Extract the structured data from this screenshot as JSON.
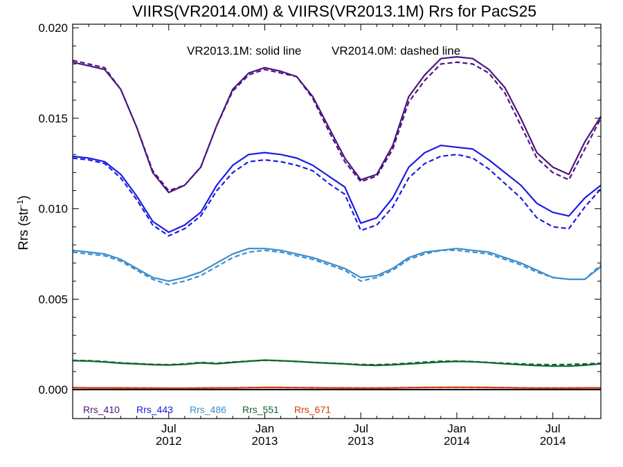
{
  "chart_data": {
    "type": "line",
    "title": "VIIRS(VR2014.0M) & VIIRS(VR2013.1M)  Rrs for PacS25",
    "annotation_solid": "VR2013.1M: solid line",
    "annotation_dashed": "VR2014.0M: dashed line",
    "ylabel": "Rrs (str",
    "ylabel_sup": "-1",
    "ylabel_close": ")",
    "xlim": [
      "2012-01",
      "2014-10"
    ],
    "ylim": [
      -0.0016,
      0.0202
    ],
    "y_ticks": [
      0.0,
      0.005,
      0.01,
      0.015,
      0.02
    ],
    "y_tick_labels": [
      "0.000",
      "0.005",
      "0.010",
      "0.015",
      "0.020"
    ],
    "x_ticks": [
      {
        "date": "2012-07",
        "month": "Jul",
        "year": "2012"
      },
      {
        "date": "2013-01",
        "month": "Jan",
        "year": "2013"
      },
      {
        "date": "2013-07",
        "month": "Jul",
        "year": "2013"
      },
      {
        "date": "2014-01",
        "month": "Jan",
        "year": "2014"
      },
      {
        "date": "2014-07",
        "month": "Jul",
        "year": "2014"
      }
    ],
    "x": [
      "2012-01",
      "2012-02",
      "2012-03",
      "2012-04",
      "2012-05",
      "2012-06",
      "2012-07",
      "2012-08",
      "2012-09",
      "2012-10",
      "2012-11",
      "2012-12",
      "2013-01",
      "2013-02",
      "2013-03",
      "2013-04",
      "2013-05",
      "2013-06",
      "2013-07",
      "2013-08",
      "2013-09",
      "2013-10",
      "2013-11",
      "2013-12",
      "2014-01",
      "2014-02",
      "2014-03",
      "2014-04",
      "2014-05",
      "2014-06",
      "2014-07",
      "2014-08",
      "2014-09",
      "2014-10"
    ],
    "series": [
      {
        "name": "Rrs_410",
        "color": "#4b1580",
        "solid": [
          0.0181,
          0.0179,
          0.0177,
          0.0166,
          0.0145,
          0.012,
          0.0109,
          0.0113,
          0.0123,
          0.0146,
          0.0166,
          0.0175,
          0.0178,
          0.0176,
          0.0173,
          0.0162,
          0.0145,
          0.0128,
          0.0116,
          0.0119,
          0.0135,
          0.0162,
          0.0174,
          0.0183,
          0.0184,
          0.0183,
          0.0177,
          0.0167,
          0.015,
          0.0131,
          0.0123,
          0.0119,
          0.0137,
          0.0151
        ],
        "dashed": [
          0.0182,
          0.018,
          0.0178,
          0.0166,
          0.0145,
          0.0121,
          0.011,
          0.0113,
          0.0123,
          0.0146,
          0.0165,
          0.0174,
          0.0177,
          0.0175,
          0.0173,
          0.0161,
          0.0143,
          0.0126,
          0.0115,
          0.0118,
          0.0133,
          0.0159,
          0.0171,
          0.018,
          0.0181,
          0.018,
          0.0175,
          0.0164,
          0.0146,
          0.0128,
          0.012,
          0.0116,
          0.0133,
          0.015
        ]
      },
      {
        "name": "Rrs_443",
        "color": "#1a1ae6",
        "solid": [
          0.0129,
          0.0128,
          0.0126,
          0.0119,
          0.0107,
          0.0093,
          0.0087,
          0.0091,
          0.0098,
          0.0113,
          0.0124,
          0.013,
          0.0131,
          0.013,
          0.0128,
          0.0124,
          0.0118,
          0.0112,
          0.0092,
          0.0095,
          0.0106,
          0.0123,
          0.0131,
          0.0135,
          0.0134,
          0.0133,
          0.0127,
          0.012,
          0.0113,
          0.0103,
          0.0098,
          0.0096,
          0.0106,
          0.0113
        ],
        "dashed": [
          0.0128,
          0.0127,
          0.0125,
          0.0117,
          0.0105,
          0.0091,
          0.0085,
          0.0089,
          0.0096,
          0.011,
          0.012,
          0.0126,
          0.0127,
          0.0126,
          0.0124,
          0.0121,
          0.0114,
          0.0108,
          0.0088,
          0.0091,
          0.0101,
          0.0117,
          0.0125,
          0.0129,
          0.013,
          0.0128,
          0.0122,
          0.0114,
          0.0106,
          0.0095,
          0.009,
          0.0089,
          0.0101,
          0.0111
        ]
      },
      {
        "name": "Rrs_486",
        "color": "#3b8ccb",
        "solid": [
          0.0077,
          0.0076,
          0.0075,
          0.0072,
          0.0067,
          0.0062,
          0.006,
          0.0062,
          0.0065,
          0.007,
          0.0075,
          0.0078,
          0.0078,
          0.0077,
          0.0075,
          0.0073,
          0.007,
          0.0067,
          0.0062,
          0.0063,
          0.0067,
          0.0073,
          0.0076,
          0.0077,
          0.0078,
          0.0077,
          0.0076,
          0.0073,
          0.007,
          0.0066,
          0.0062,
          0.0061,
          0.0061,
          0.0068
        ],
        "dashed": [
          0.0076,
          0.0075,
          0.0074,
          0.0071,
          0.0066,
          0.0061,
          0.0058,
          0.006,
          0.0063,
          0.0068,
          0.0073,
          0.0076,
          0.0077,
          0.0076,
          0.0074,
          0.0072,
          0.0069,
          0.0066,
          0.006,
          0.0062,
          0.0066,
          0.0072,
          0.0075,
          0.0077,
          0.0077,
          0.0076,
          0.0075,
          0.0072,
          0.0069,
          0.0065,
          0.0062,
          0.0061,
          0.0061,
          0.0069
        ]
      },
      {
        "name": "Rrs_551",
        "color": "#0d6630",
        "solid": [
          0.0016,
          0.00158,
          0.00153,
          0.00146,
          0.00142,
          0.00138,
          0.00136,
          0.0014,
          0.00148,
          0.00143,
          0.0015,
          0.00157,
          0.00163,
          0.0016,
          0.00156,
          0.0015,
          0.00146,
          0.00142,
          0.00136,
          0.00134,
          0.00137,
          0.00142,
          0.00147,
          0.00153,
          0.00156,
          0.00154,
          0.00149,
          0.00143,
          0.00138,
          0.00133,
          0.0013,
          0.0013,
          0.00135,
          0.00143
        ],
        "dashed": [
          0.00162,
          0.0016,
          0.00155,
          0.00148,
          0.00144,
          0.0014,
          0.00138,
          0.00142,
          0.0015,
          0.00146,
          0.00152,
          0.00158,
          0.00162,
          0.00159,
          0.00155,
          0.00151,
          0.00147,
          0.00143,
          0.00139,
          0.00138,
          0.00141,
          0.00146,
          0.00152,
          0.00157,
          0.00158,
          0.00155,
          0.0015,
          0.00146,
          0.00142,
          0.00139,
          0.00138,
          0.00139,
          0.00142,
          0.00146
        ]
      },
      {
        "name": "Rrs_671",
        "color": "#cc3c0c",
        "solid": [
          0.00011,
          0.0001,
          0.0001,
          0.0001,
          9e-05,
          9e-05,
          8e-05,
          8e-05,
          9e-05,
          0.0001,
          0.0001,
          0.00011,
          0.00012,
          0.00012,
          0.00011,
          0.00011,
          0.0001,
          0.0001,
          9e-05,
          9e-05,
          0.0001,
          0.00011,
          0.00012,
          0.00013,
          0.00013,
          0.00013,
          0.00012,
          0.00011,
          0.0001,
          9e-05,
          9e-05,
          9e-05,
          0.0001,
          0.0001
        ],
        "dashed": [
          0.00011,
          0.0001,
          0.0001,
          9e-05,
          9e-05,
          8e-05,
          8e-05,
          8e-05,
          9e-05,
          0.0001,
          0.0001,
          0.00011,
          0.00012,
          0.00012,
          0.00011,
          0.0001,
          0.0001,
          9e-05,
          9e-05,
          9e-05,
          0.0001,
          0.00011,
          0.00012,
          0.00012,
          0.00013,
          0.00012,
          0.00012,
          0.00011,
          0.0001,
          9e-05,
          9e-05,
          9e-05,
          0.0001,
          0.0001
        ]
      }
    ],
    "zero_line": true,
    "legend_position": "bottom-left"
  }
}
